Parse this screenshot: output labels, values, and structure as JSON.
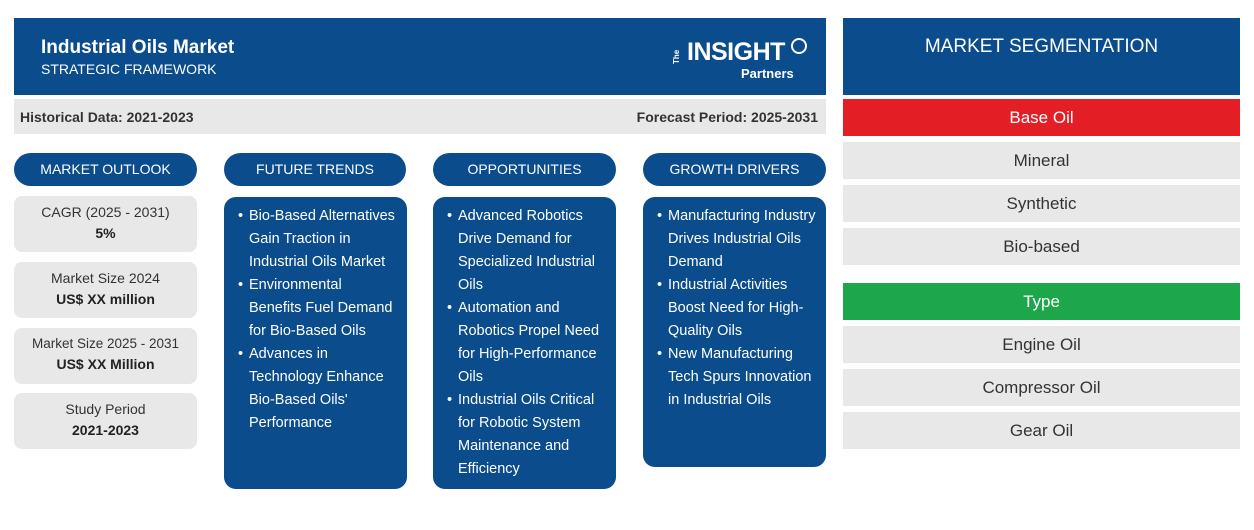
{
  "header": {
    "title": "Industrial Oils Market",
    "subtitle": "STRATEGIC FRAMEWORK",
    "logo": {
      "the": "The",
      "insight": "INSIGHT",
      "partners": "Partners"
    }
  },
  "periods": {
    "historical": "Historical Data: 2021-2023",
    "forecast": "Forecast Period: 2025-2031"
  },
  "columns": {
    "outlook": "MARKET OUTLOOK",
    "trends": "FUTURE TRENDS",
    "opportunities": "OPPORTUNITIES",
    "drivers": "GROWTH DRIVERS"
  },
  "outlook": [
    {
      "label": "CAGR (2025 - 2031)",
      "value": "5%"
    },
    {
      "label": "Market Size 2024",
      "value": "US$ XX million"
    },
    {
      "label": "Market Size 2025 - 2031",
      "value": "US$ XX Million"
    },
    {
      "label": "Study Period",
      "value": "2021-2023"
    }
  ],
  "trends": [
    "Bio-Based Alternatives Gain Traction in Industrial Oils Market",
    "Environmental Benefits Fuel Demand for Bio-Based Oils",
    "Advances in Technology Enhance Bio-Based Oils' Performance"
  ],
  "opportunities": [
    "Advanced Robotics Drive Demand for Specialized Industrial Oils",
    "Automation and Robotics Propel Need for High-Performance Oils",
    "Industrial Oils Critical for Robotic System Maintenance and Efficiency"
  ],
  "drivers": [
    "Manufacturing Industry Drives Industrial Oils Demand",
    "Industrial Activities Boost Need for High-Quality Oils",
    "New Manufacturing Tech Spurs Innovation in Industrial Oils"
  ],
  "segmentation": {
    "title": "MARKET SEGMENTATION",
    "groups": [
      {
        "name": "Base Oil",
        "color": "#e31e25",
        "items": [
          "Mineral",
          "Synthetic",
          "Bio-based"
        ]
      },
      {
        "name": "Type",
        "color": "#1ea64b",
        "items": [
          "Engine Oil",
          "Compressor Oil",
          "Gear Oil"
        ]
      }
    ]
  },
  "colors": {
    "primary": "#0a4c8c",
    "panel": "#e8e8e8"
  }
}
